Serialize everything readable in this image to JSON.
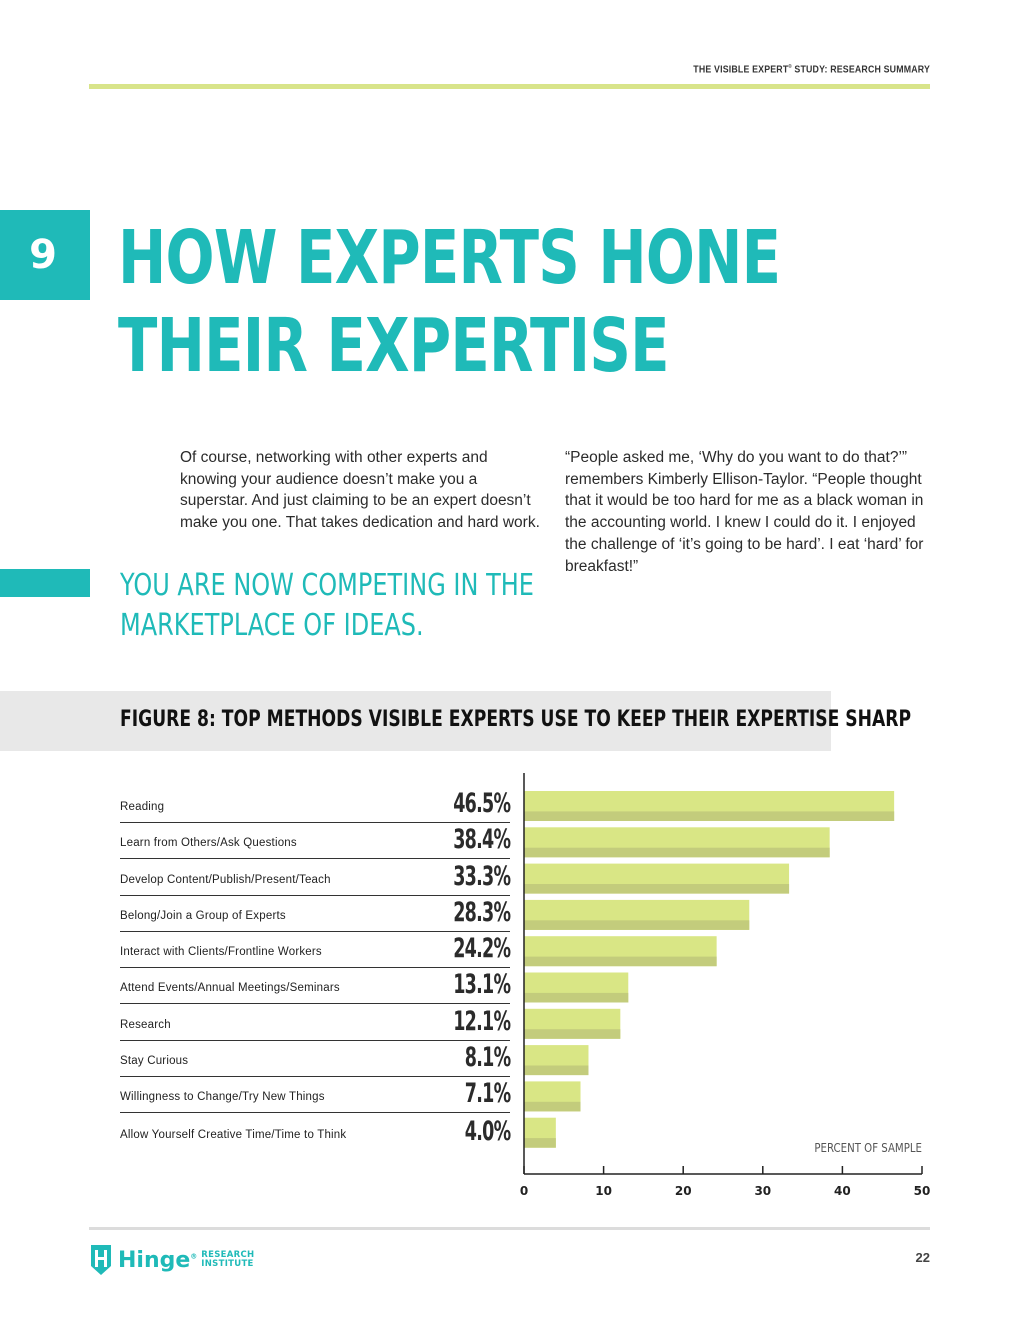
{
  "header": {
    "running_head_pre": "THE VISIBLE EXPERT",
    "running_head_mark": "®",
    "running_head_post": " STUDY: RESEARCH SUMMARY"
  },
  "section": {
    "number": "9",
    "title_lines": [
      "HOW EXPERTS HONE",
      "THEIR EXPERTISE"
    ]
  },
  "body": {
    "left_paragraph": "Of course, networking with other experts and knowing your audience doesn’t make you a superstar. And just claiming to be an expert doesn’t make you one. That takes dedication and hard work.",
    "right_paragraph": "“People asked me, ‘Why do you want to do that?’” remembers Kimberly Ellison-Taylor. “People thought that it would be too hard for me as a black woman in the accounting world. I knew I could do it. I enjoyed the challenge of ‘it’s going to be hard’. I eat ‘hard’ for breakfast!”",
    "pull_quote_lines": [
      "YOU ARE NOW COMPETING IN THE",
      "MARKETPLACE OF IDEAS."
    ]
  },
  "figure": {
    "title": "FIGURE 8: TOP METHODS VISIBLE EXPERTS USE TO KEEP THEIR EXPERTISE SHARP"
  },
  "chart_data": {
    "type": "bar",
    "orientation": "horizontal",
    "title": "FIGURE 8: TOP METHODS VISIBLE EXPERTS USE TO KEEP THEIR EXPERTISE SHARP",
    "categories": [
      "Reading",
      "Learn from Others/Ask Questions",
      "Develop Content/Publish/Present/Teach",
      "Belong/Join a Group of Experts",
      "Interact with Clients/Frontline Workers",
      "Attend Events/Annual Meetings/Seminars",
      "Research",
      "Stay Curious",
      "Willingness to Change/Try New Things",
      "Allow Yourself Creative Time/Time to Think"
    ],
    "values": [
      46.5,
      38.4,
      33.3,
      28.3,
      24.2,
      13.1,
      12.1,
      8.1,
      7.1,
      4.0
    ],
    "value_labels": [
      "46.5%",
      "38.4%",
      "33.3%",
      "28.3%",
      "24.2%",
      "13.1%",
      "12.1%",
      "8.1%",
      "7.1%",
      "4.0%"
    ],
    "xlabel": "PERCENT OF SAMPLE",
    "ylabel": "",
    "xlim": [
      0,
      50
    ],
    "xticks": [
      "0",
      "10",
      "20",
      "30",
      "40",
      "50"
    ],
    "grid": false,
    "bar_color": "#d9e685",
    "bar_shadow_color": "#c3cc7c"
  },
  "footer": {
    "logo_name": "Hinge",
    "logo_mark": "®",
    "logo_sub_1": "RESEARCH",
    "logo_sub_2": "INSTITUTE",
    "page_number": "22"
  },
  "colors": {
    "accent": "#1fbab8",
    "rule": "#d8e48a"
  }
}
